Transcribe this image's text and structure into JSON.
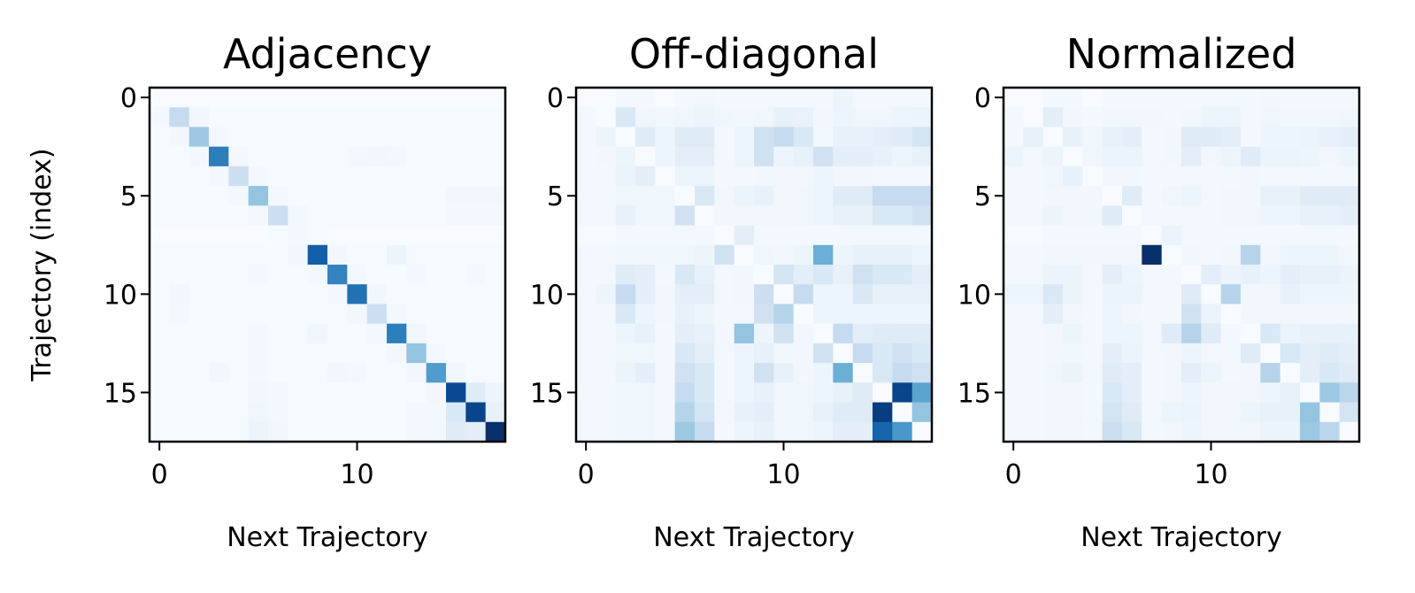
{
  "chart_data": [
    {
      "type": "heatmap",
      "title": "Adjacency",
      "xlabel": "Next Trajectory",
      "ylabel": "Trajectory (index)",
      "xticks": [
        0,
        10
      ],
      "yticks": [
        0,
        5,
        10,
        15
      ],
      "xlim": [
        -0.5,
        17.5
      ],
      "ylim": [
        17.5,
        -0.5
      ],
      "colormap": "Blues",
      "grid": false,
      "values": [
        [
          0.0,
          0.0,
          0.0,
          0.0,
          0.0,
          0.0,
          0.0,
          0.0,
          0.0,
          0.0,
          0.0,
          0.0,
          0.0,
          0.0,
          0.0,
          0.0,
          0.0,
          0.0
        ],
        [
          0.02,
          0.25,
          0.03,
          0.01,
          0.01,
          0.01,
          0.01,
          0.01,
          0.01,
          0.01,
          0.01,
          0.01,
          0.01,
          0.01,
          0.01,
          0.01,
          0.01,
          0.01
        ],
        [
          0.01,
          0.02,
          0.38,
          0.02,
          0.01,
          0.01,
          0.01,
          0.01,
          0.01,
          0.01,
          0.01,
          0.01,
          0.01,
          0.01,
          0.01,
          0.01,
          0.01,
          0.01
        ],
        [
          0.01,
          0.01,
          0.02,
          0.7,
          0.02,
          0.01,
          0.01,
          0.01,
          0.01,
          0.01,
          0.02,
          0.03,
          0.02,
          0.01,
          0.01,
          0.01,
          0.01,
          0.01
        ],
        [
          0.01,
          0.01,
          0.01,
          0.02,
          0.22,
          0.02,
          0.01,
          0.01,
          0.01,
          0.01,
          0.01,
          0.01,
          0.01,
          0.01,
          0.01,
          0.01,
          0.01,
          0.01
        ],
        [
          0.01,
          0.01,
          0.01,
          0.01,
          0.02,
          0.4,
          0.02,
          0.01,
          0.01,
          0.01,
          0.01,
          0.01,
          0.01,
          0.01,
          0.01,
          0.03,
          0.03,
          0.03
        ],
        [
          0.01,
          0.01,
          0.01,
          0.01,
          0.01,
          0.02,
          0.22,
          0.02,
          0.01,
          0.01,
          0.01,
          0.01,
          0.01,
          0.01,
          0.01,
          0.02,
          0.02,
          0.02
        ],
        [
          0.0,
          0.0,
          0.0,
          0.0,
          0.0,
          0.0,
          0.01,
          0.02,
          0.01,
          0.0,
          0.0,
          0.0,
          0.0,
          0.0,
          0.0,
          0.0,
          0.0,
          0.0
        ],
        [
          0.01,
          0.01,
          0.01,
          0.01,
          0.01,
          0.01,
          0.01,
          0.03,
          0.82,
          0.03,
          0.01,
          0.01,
          0.05,
          0.01,
          0.01,
          0.01,
          0.01,
          0.01
        ],
        [
          0.01,
          0.01,
          0.01,
          0.01,
          0.01,
          0.02,
          0.01,
          0.01,
          0.02,
          0.68,
          0.02,
          0.01,
          0.01,
          0.02,
          0.01,
          0.01,
          0.02,
          0.01
        ],
        [
          0.01,
          0.03,
          0.01,
          0.01,
          0.01,
          0.01,
          0.01,
          0.01,
          0.01,
          0.02,
          0.75,
          0.03,
          0.01,
          0.01,
          0.01,
          0.01,
          0.01,
          0.01
        ],
        [
          0.01,
          0.02,
          0.01,
          0.01,
          0.01,
          0.01,
          0.01,
          0.01,
          0.01,
          0.01,
          0.03,
          0.22,
          0.02,
          0.01,
          0.01,
          0.01,
          0.01,
          0.01
        ],
        [
          0.01,
          0.01,
          0.01,
          0.01,
          0.01,
          0.02,
          0.01,
          0.01,
          0.04,
          0.01,
          0.01,
          0.02,
          0.7,
          0.03,
          0.01,
          0.01,
          0.01,
          0.01
        ],
        [
          0.01,
          0.01,
          0.01,
          0.01,
          0.01,
          0.02,
          0.01,
          0.01,
          0.01,
          0.01,
          0.01,
          0.01,
          0.03,
          0.4,
          0.02,
          0.01,
          0.01,
          0.01
        ],
        [
          0.01,
          0.01,
          0.01,
          0.03,
          0.01,
          0.02,
          0.01,
          0.01,
          0.01,
          0.03,
          0.02,
          0.01,
          0.01,
          0.03,
          0.58,
          0.03,
          0.01,
          0.01
        ],
        [
          0.01,
          0.01,
          0.01,
          0.01,
          0.01,
          0.03,
          0.02,
          0.01,
          0.01,
          0.01,
          0.01,
          0.01,
          0.01,
          0.01,
          0.03,
          0.9,
          0.12,
          0.05
        ],
        [
          0.01,
          0.01,
          0.01,
          0.01,
          0.01,
          0.04,
          0.02,
          0.01,
          0.01,
          0.01,
          0.01,
          0.01,
          0.01,
          0.02,
          0.02,
          0.15,
          0.92,
          0.08
        ],
        [
          0.01,
          0.01,
          0.01,
          0.01,
          0.01,
          0.05,
          0.03,
          0.01,
          0.01,
          0.01,
          0.01,
          0.01,
          0.01,
          0.02,
          0.02,
          0.12,
          0.1,
          1.0
        ]
      ]
    },
    {
      "type": "heatmap",
      "title": "Off-diagonal",
      "xlabel": "Next Trajectory",
      "ylabel": "",
      "xticks": [
        0,
        10
      ],
      "yticks": [
        0,
        5,
        10,
        15
      ],
      "xlim": [
        -0.5,
        17.5
      ],
      "ylim": [
        17.5,
        -0.5
      ],
      "colormap": "Blues",
      "grid": false,
      "values": [
        [
          0.0,
          0.0,
          0.02,
          0.02,
          0.0,
          0.02,
          0.03,
          0.02,
          0.02,
          0.02,
          0.02,
          0.02,
          0.02,
          0.05,
          0.02,
          0.02,
          0.02,
          0.02
        ],
        [
          0.02,
          0.0,
          0.15,
          0.04,
          0.03,
          0.04,
          0.05,
          0.04,
          0.03,
          0.04,
          0.08,
          0.07,
          0.03,
          0.05,
          0.04,
          0.04,
          0.05,
          0.06
        ],
        [
          0.02,
          0.05,
          0.0,
          0.12,
          0.05,
          0.12,
          0.12,
          0.02,
          0.05,
          0.2,
          0.25,
          0.15,
          0.02,
          0.08,
          0.08,
          0.1,
          0.12,
          0.18
        ],
        [
          0.02,
          0.03,
          0.05,
          0.0,
          0.05,
          0.1,
          0.1,
          0.02,
          0.05,
          0.2,
          0.05,
          0.08,
          0.2,
          0.1,
          0.1,
          0.08,
          0.05,
          0.08
        ],
        [
          0.02,
          0.02,
          0.06,
          0.1,
          0.0,
          0.05,
          0.05,
          0.02,
          0.02,
          0.03,
          0.03,
          0.03,
          0.05,
          0.03,
          0.03,
          0.02,
          0.02,
          0.02
        ],
        [
          0.02,
          0.02,
          0.04,
          0.04,
          0.04,
          0.0,
          0.15,
          0.03,
          0.06,
          0.08,
          0.03,
          0.04,
          0.05,
          0.12,
          0.12,
          0.25,
          0.25,
          0.25
        ],
        [
          0.02,
          0.02,
          0.08,
          0.04,
          0.04,
          0.2,
          0.0,
          0.03,
          0.03,
          0.03,
          0.03,
          0.04,
          0.05,
          0.08,
          0.08,
          0.15,
          0.15,
          0.2
        ],
        [
          0.01,
          0.01,
          0.02,
          0.02,
          0.02,
          0.02,
          0.02,
          0.0,
          0.1,
          0.02,
          0.02,
          0.02,
          0.02,
          0.02,
          0.02,
          0.02,
          0.02,
          0.02
        ],
        [
          0.02,
          0.02,
          0.04,
          0.04,
          0.04,
          0.04,
          0.05,
          0.2,
          0.0,
          0.04,
          0.03,
          0.05,
          0.5,
          0.05,
          0.08,
          0.08,
          0.08,
          0.05
        ],
        [
          0.02,
          0.02,
          0.12,
          0.1,
          0.02,
          0.15,
          0.08,
          0.02,
          0.03,
          0.0,
          0.18,
          0.1,
          0.15,
          0.08,
          0.2,
          0.15,
          0.15,
          0.1
        ],
        [
          0.02,
          0.05,
          0.25,
          0.1,
          0.03,
          0.1,
          0.1,
          0.02,
          0.03,
          0.22,
          0.0,
          0.25,
          0.05,
          0.05,
          0.15,
          0.08,
          0.08,
          0.08
        ],
        [
          0.02,
          0.02,
          0.15,
          0.05,
          0.03,
          0.08,
          0.05,
          0.02,
          0.02,
          0.2,
          0.3,
          0.0,
          0.05,
          0.05,
          0.05,
          0.05,
          0.05,
          0.05
        ],
        [
          0.02,
          0.02,
          0.05,
          0.08,
          0.02,
          0.1,
          0.08,
          0.02,
          0.4,
          0.05,
          0.2,
          0.03,
          0.0,
          0.25,
          0.1,
          0.12,
          0.12,
          0.12
        ],
        [
          0.02,
          0.02,
          0.04,
          0.04,
          0.02,
          0.15,
          0.1,
          0.02,
          0.05,
          0.08,
          0.03,
          0.03,
          0.2,
          0.0,
          0.25,
          0.15,
          0.2,
          0.15
        ],
        [
          0.02,
          0.02,
          0.06,
          0.1,
          0.02,
          0.2,
          0.15,
          0.02,
          0.05,
          0.2,
          0.08,
          0.03,
          0.05,
          0.5,
          0.0,
          0.15,
          0.25,
          0.2
        ],
        [
          0.02,
          0.02,
          0.04,
          0.04,
          0.02,
          0.25,
          0.15,
          0.02,
          0.05,
          0.08,
          0.04,
          0.04,
          0.05,
          0.08,
          0.12,
          0.0,
          0.92,
          0.55
        ],
        [
          0.02,
          0.02,
          0.04,
          0.04,
          0.02,
          0.3,
          0.18,
          0.02,
          0.08,
          0.1,
          0.04,
          0.04,
          0.08,
          0.12,
          0.12,
          0.95,
          0.0,
          0.4
        ],
        [
          0.02,
          0.02,
          0.04,
          0.04,
          0.02,
          0.38,
          0.25,
          0.02,
          0.05,
          0.08,
          0.04,
          0.04,
          0.05,
          0.1,
          0.1,
          0.8,
          0.6,
          0.0
        ]
      ]
    },
    {
      "type": "heatmap",
      "title": "Normalized",
      "xlabel": "Next Trajectory",
      "ylabel": "",
      "xticks": [
        0,
        10
      ],
      "yticks": [
        0,
        5,
        10,
        15
      ],
      "xlim": [
        -0.5,
        17.5
      ],
      "ylim": [
        17.5,
        -0.5
      ],
      "colormap": "Blues",
      "grid": false,
      "values": [
        [
          0.0,
          0.0,
          0.02,
          0.02,
          0.0,
          0.02,
          0.02,
          0.02,
          0.02,
          0.02,
          0.02,
          0.02,
          0.02,
          0.03,
          0.02,
          0.02,
          0.02,
          0.02
        ],
        [
          0.02,
          0.0,
          0.1,
          0.03,
          0.02,
          0.03,
          0.03,
          0.03,
          0.02,
          0.03,
          0.05,
          0.05,
          0.02,
          0.04,
          0.03,
          0.03,
          0.03,
          0.04
        ],
        [
          0.02,
          0.08,
          0.0,
          0.08,
          0.04,
          0.08,
          0.1,
          0.02,
          0.03,
          0.12,
          0.12,
          0.1,
          0.02,
          0.05,
          0.05,
          0.06,
          0.08,
          0.1
        ],
        [
          0.05,
          0.02,
          0.05,
          0.0,
          0.04,
          0.06,
          0.06,
          0.02,
          0.03,
          0.1,
          0.03,
          0.05,
          0.12,
          0.06,
          0.06,
          0.05,
          0.03,
          0.05
        ],
        [
          0.02,
          0.02,
          0.04,
          0.08,
          0.0,
          0.03,
          0.03,
          0.02,
          0.02,
          0.02,
          0.02,
          0.02,
          0.03,
          0.02,
          0.02,
          0.02,
          0.02,
          0.02
        ],
        [
          0.02,
          0.02,
          0.03,
          0.03,
          0.03,
          0.0,
          0.12,
          0.02,
          0.04,
          0.05,
          0.02,
          0.03,
          0.03,
          0.08,
          0.08,
          0.12,
          0.12,
          0.12
        ],
        [
          0.02,
          0.02,
          0.05,
          0.03,
          0.03,
          0.12,
          0.0,
          0.02,
          0.02,
          0.02,
          0.02,
          0.03,
          0.03,
          0.05,
          0.05,
          0.08,
          0.08,
          0.1
        ],
        [
          0.01,
          0.01,
          0.02,
          0.02,
          0.02,
          0.02,
          0.02,
          0.0,
          0.06,
          0.02,
          0.02,
          0.02,
          0.02,
          0.02,
          0.02,
          0.02,
          0.02,
          0.02
        ],
        [
          0.02,
          0.02,
          0.03,
          0.03,
          0.03,
          0.03,
          0.03,
          1.0,
          0.0,
          0.03,
          0.02,
          0.03,
          0.3,
          0.03,
          0.05,
          0.05,
          0.05,
          0.03
        ],
        [
          0.02,
          0.02,
          0.06,
          0.06,
          0.02,
          0.1,
          0.05,
          0.02,
          0.02,
          0.0,
          0.1,
          0.06,
          0.08,
          0.05,
          0.1,
          0.08,
          0.08,
          0.06
        ],
        [
          0.05,
          0.05,
          0.15,
          0.06,
          0.02,
          0.06,
          0.06,
          0.02,
          0.02,
          0.12,
          0.0,
          0.3,
          0.03,
          0.03,
          0.08,
          0.05,
          0.05,
          0.05
        ],
        [
          0.02,
          0.02,
          0.1,
          0.03,
          0.02,
          0.05,
          0.03,
          0.02,
          0.02,
          0.2,
          0.06,
          0.0,
          0.03,
          0.03,
          0.03,
          0.03,
          0.03,
          0.03
        ],
        [
          0.02,
          0.02,
          0.03,
          0.05,
          0.02,
          0.05,
          0.05,
          0.02,
          0.12,
          0.3,
          0.12,
          0.02,
          0.0,
          0.15,
          0.06,
          0.08,
          0.08,
          0.08
        ],
        [
          0.02,
          0.02,
          0.03,
          0.03,
          0.02,
          0.1,
          0.06,
          0.02,
          0.03,
          0.05,
          0.02,
          0.02,
          0.12,
          0.0,
          0.15,
          0.1,
          0.12,
          0.1
        ],
        [
          0.02,
          0.02,
          0.04,
          0.06,
          0.02,
          0.12,
          0.1,
          0.02,
          0.03,
          0.1,
          0.05,
          0.02,
          0.03,
          0.3,
          0.0,
          0.1,
          0.15,
          0.12
        ],
        [
          0.02,
          0.02,
          0.03,
          0.03,
          0.02,
          0.15,
          0.1,
          0.02,
          0.03,
          0.05,
          0.03,
          0.03,
          0.03,
          0.05,
          0.08,
          0.0,
          0.38,
          0.28
        ],
        [
          0.02,
          0.02,
          0.03,
          0.03,
          0.02,
          0.18,
          0.12,
          0.02,
          0.05,
          0.06,
          0.03,
          0.03,
          0.05,
          0.08,
          0.08,
          0.4,
          0.0,
          0.18
        ],
        [
          0.02,
          0.02,
          0.03,
          0.03,
          0.02,
          0.22,
          0.15,
          0.02,
          0.03,
          0.05,
          0.03,
          0.03,
          0.03,
          0.06,
          0.06,
          0.38,
          0.28,
          0.0
        ]
      ]
    }
  ]
}
